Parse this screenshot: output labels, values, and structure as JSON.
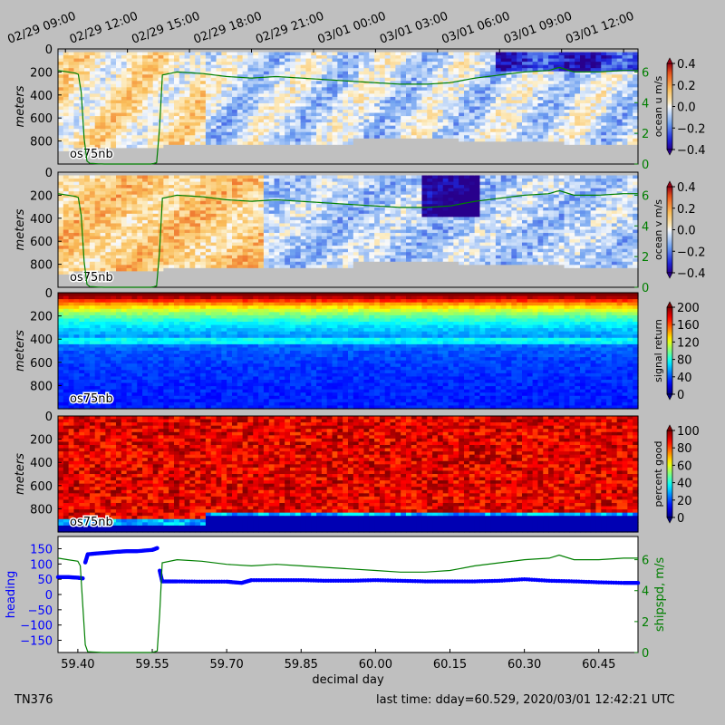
{
  "cruise_id": "TN376",
  "last_time": "last time: dday=60.529,  2020/03/01 12:42:21 UTC",
  "instrument_label": "os75nb",
  "top_time_labels": [
    "02/29 09:00",
    "02/29 12:00",
    "02/29 15:00",
    "02/29 18:00",
    "02/29 21:00",
    "03/01 00:00",
    "03/01 03:00",
    "03/01 06:00",
    "03/01 09:00",
    "03/01 12:00"
  ],
  "top_time_dday": [
    59.375,
    59.5,
    59.625,
    59.75,
    59.875,
    60.0,
    60.125,
    60.25,
    60.375,
    60.5
  ],
  "colors": {
    "heading": "#0000ff",
    "shipspd": "#007f00",
    "missing": "#c0c0c0",
    "background": "#bfbfbf"
  },
  "chart_data": [
    {
      "type": "heatmap",
      "ylabel": "meters",
      "colorbar_label": "ocean u m/s",
      "colormap": "blue-white-red",
      "yticks": [
        0,
        200,
        400,
        600,
        800
      ],
      "ylim": [
        1000,
        0
      ],
      "clim": [
        -0.4,
        0.4
      ],
      "colorbar_ticks": [
        "0.4",
        "0.2",
        "0.0",
        "−0.2",
        "−0.4"
      ],
      "right_ticks": [
        "0",
        "2",
        "4",
        "6"
      ],
      "right_ylim": [
        0,
        7.5
      ],
      "overlay": "ship speed"
    },
    {
      "type": "heatmap",
      "ylabel": "meters",
      "colorbar_label": "ocean v m/s",
      "colormap": "blue-white-red",
      "yticks": [
        0,
        200,
        400,
        600,
        800
      ],
      "ylim": [
        1000,
        0
      ],
      "clim": [
        -0.4,
        0.4
      ],
      "colorbar_ticks": [
        "0.4",
        "0.2",
        "0.0",
        "−0.2",
        "−0.4"
      ],
      "right_ticks": [
        "0",
        "2",
        "4",
        "6"
      ],
      "right_ylim": [
        0,
        7.5
      ],
      "overlay": "ship speed"
    },
    {
      "type": "heatmap",
      "ylabel": "meters",
      "colorbar_label": "signal return",
      "colormap": "jet",
      "yticks": [
        0,
        200,
        400,
        600,
        800
      ],
      "ylim": [
        1000,
        0
      ],
      "clim": [
        0,
        200
      ],
      "colorbar_ticks": [
        "200",
        "160",
        "120",
        "80",
        "40",
        "0"
      ]
    },
    {
      "type": "heatmap",
      "ylabel": "meters",
      "colorbar_label": "percent good",
      "colormap": "jet",
      "yticks": [
        0,
        200,
        400,
        600,
        800
      ],
      "ylim": [
        1000,
        0
      ],
      "clim": [
        0,
        100
      ],
      "colorbar_ticks": [
        "100",
        "80",
        "60",
        "40",
        "20",
        "0"
      ]
    },
    {
      "type": "line",
      "xlabel": "decimal day",
      "xticks": [
        "59.40",
        "59.55",
        "59.70",
        "59.85",
        "60.00",
        "60.15",
        "60.30",
        "60.45"
      ],
      "xtick_values": [
        59.4,
        59.55,
        59.7,
        59.85,
        60.0,
        60.15,
        60.3,
        60.45
      ],
      "xlim": [
        59.36,
        60.529
      ],
      "left_ylabel": "heading",
      "left_yticks": [
        "150",
        "100",
        "50",
        "0",
        "−50",
        "−100",
        "−150"
      ],
      "left_ylim": [
        -190,
        190
      ],
      "right_ylabel": "shipspd, m/s",
      "right_yticks": [
        "6",
        "4",
        "2",
        "0"
      ],
      "right_ylim": [
        0,
        7.5
      ],
      "series": [
        {
          "name": "heading",
          "style": "dots",
          "x": [
            59.36,
            59.38,
            59.4,
            59.41,
            59.415,
            59.42,
            59.45,
            59.48,
            59.5,
            59.52,
            59.55,
            59.56,
            59.565,
            59.57,
            59.6,
            59.65,
            59.7,
            59.73,
            59.75,
            59.8,
            59.85,
            59.9,
            59.95,
            60.0,
            60.05,
            60.1,
            60.15,
            60.2,
            60.25,
            60.3,
            60.35,
            60.4,
            60.45,
            60.5,
            60.529
          ],
          "y": [
            57,
            57,
            55,
            53,
            105,
            132,
            136,
            140,
            142,
            142,
            146,
            152,
            78,
            43,
            43,
            42,
            42,
            38,
            47,
            47,
            47,
            45,
            45,
            47,
            45,
            43,
            43,
            43,
            45,
            50,
            45,
            43,
            40,
            38,
            38
          ]
        },
        {
          "name": "shipspd",
          "style": "line",
          "x": [
            59.36,
            59.38,
            59.4,
            59.405,
            59.41,
            59.415,
            59.42,
            59.45,
            59.5,
            59.55,
            59.56,
            59.565,
            59.57,
            59.6,
            59.65,
            59.7,
            59.75,
            59.8,
            59.85,
            59.9,
            59.95,
            60.0,
            60.05,
            60.1,
            60.15,
            60.2,
            60.25,
            60.3,
            60.35,
            60.37,
            60.4,
            60.45,
            60.5,
            60.529
          ],
          "y": [
            6.1,
            6.0,
            5.9,
            5.6,
            3.0,
            0.5,
            0.05,
            0.0,
            0.0,
            0.0,
            0.1,
            2.5,
            5.8,
            6.0,
            5.9,
            5.7,
            5.6,
            5.7,
            5.6,
            5.5,
            5.4,
            5.3,
            5.2,
            5.2,
            5.3,
            5.6,
            5.8,
            6.0,
            6.1,
            6.3,
            6.0,
            6.0,
            6.1,
            6.1
          ]
        }
      ]
    }
  ]
}
